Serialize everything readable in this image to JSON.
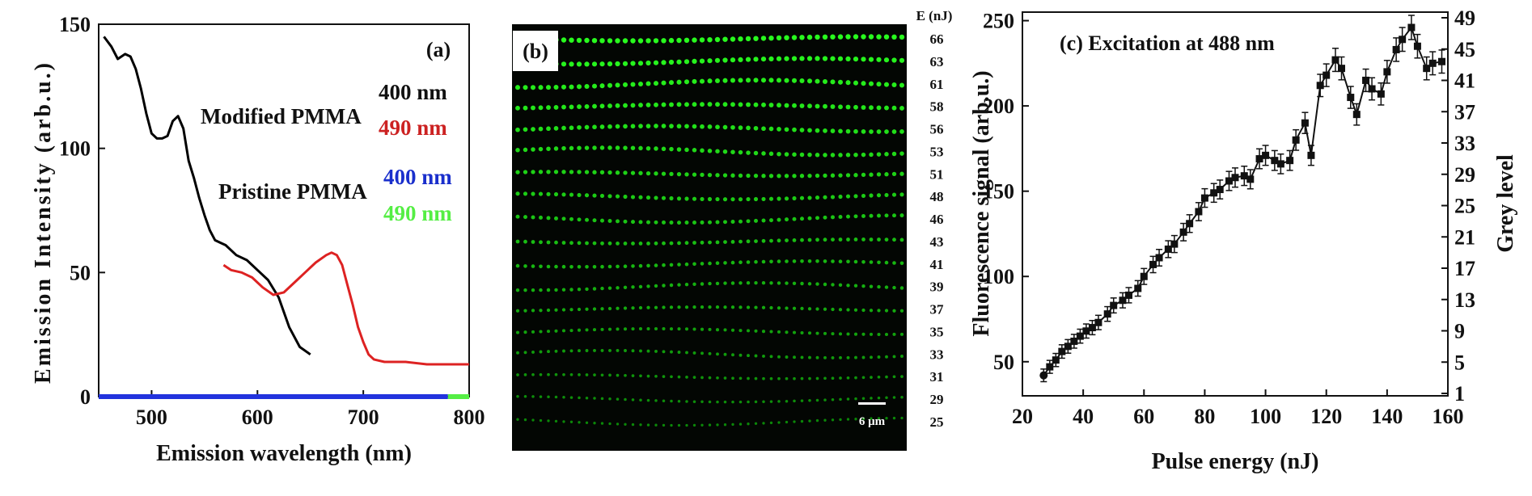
{
  "chart_data": [
    {
      "panel": "(a)",
      "type": "line",
      "xlabel": "Emission wavelength (nm)",
      "ylabel": "Emission Intensity (arb.u.)",
      "xlim": [
        450,
        800
      ],
      "ylim": [
        0,
        150
      ],
      "xticks": [
        "500",
        "600",
        "700",
        "800"
      ],
      "yticks": [
        "0",
        "50",
        "100",
        "150"
      ],
      "annotations": {
        "modified": "Modified PMMA",
        "pristine": "Pristine PMMA",
        "m400": "400 nm",
        "m490": "490 nm",
        "p400": "400 nm",
        "p490": "490 nm"
      },
      "series": [
        {
          "color": "#000000",
          "x": [
            455,
            462,
            468,
            475,
            480,
            485,
            490,
            495,
            500,
            505,
            510,
            515,
            520,
            525,
            530,
            535,
            540,
            545,
            550,
            555,
            560,
            565,
            570,
            575,
            580,
            590,
            600,
            610,
            620,
            630,
            640,
            650
          ],
          "y": [
            145,
            141,
            136,
            138,
            137,
            132,
            124,
            114,
            106,
            104,
            104,
            105,
            111,
            113,
            108,
            95,
            88,
            80,
            73,
            67,
            63,
            62,
            61,
            59,
            57,
            55,
            51,
            47,
            40,
            28,
            20,
            17
          ]
        },
        {
          "color": "#dd2222",
          "x": [
            568,
            575,
            585,
            595,
            605,
            615,
            625,
            635,
            645,
            655,
            665,
            670,
            675,
            680,
            685,
            690,
            695,
            700,
            705,
            710,
            720,
            740,
            760,
            780,
            800
          ],
          "y": [
            53,
            51,
            50,
            48,
            44,
            41,
            42,
            46,
            50,
            54,
            57,
            58,
            57,
            53,
            45,
            37,
            28,
            22,
            17,
            15,
            14,
            14,
            13,
            13,
            13
          ]
        },
        {
          "color": "#2233dd",
          "x": [
            450,
            780
          ],
          "y": [
            0,
            0
          ]
        },
        {
          "color": "#55ee44",
          "x": [
            780,
            800
          ],
          "y": [
            0,
            0
          ]
        }
      ]
    },
    {
      "panel": "(b)",
      "type": "image",
      "energy_header": "E (nJ)",
      "energies": [
        "66",
        "63",
        "61",
        "58",
        "56",
        "53",
        "51",
        "48",
        "46",
        "43",
        "41",
        "39",
        "37",
        "35",
        "33",
        "31",
        "29",
        "25"
      ],
      "scale_bar": "6 μm"
    },
    {
      "panel": "(c) Excitation at 488 nm",
      "type": "line",
      "xlabel": "Pulse energy (nJ)",
      "ylabel": "Fluorescence signal (arb.u.)",
      "y2label": "Grey level",
      "xlim": [
        20,
        160
      ],
      "ylim": [
        30,
        255
      ],
      "xticks": [
        "20",
        "40",
        "60",
        "80",
        "100",
        "120",
        "140",
        "160"
      ],
      "yticks": [
        "50",
        "100",
        "150",
        "200",
        "250"
      ],
      "y2ticks": [
        "1",
        "5",
        "9",
        "13",
        "17",
        "21",
        "25",
        "29",
        "33",
        "37",
        "41",
        "45",
        "49"
      ],
      "x": [
        27,
        29,
        31,
        33,
        35,
        37,
        39,
        41,
        43,
        45,
        48,
        50,
        53,
        55,
        58,
        60,
        63,
        65,
        68,
        70,
        73,
        75,
        78,
        80,
        83,
        85,
        88,
        90,
        93,
        95,
        98,
        100,
        103,
        105,
        108,
        110,
        113,
        115,
        118,
        120,
        123,
        125,
        128,
        130,
        133,
        135,
        138,
        140,
        143,
        145,
        148,
        150,
        153,
        155,
        158
      ],
      "y": [
        42,
        47,
        51,
        56,
        59,
        62,
        65,
        68,
        70,
        73,
        78,
        83,
        86,
        89,
        93,
        100,
        107,
        111,
        116,
        119,
        126,
        131,
        138,
        146,
        149,
        151,
        156,
        158,
        159,
        157,
        169,
        171,
        168,
        166,
        168,
        180,
        190,
        171,
        212,
        218,
        227,
        222,
        205,
        195,
        215,
        210,
        207,
        220,
        233,
        239,
        246,
        235,
        222,
        225,
        226
      ]
    }
  ]
}
